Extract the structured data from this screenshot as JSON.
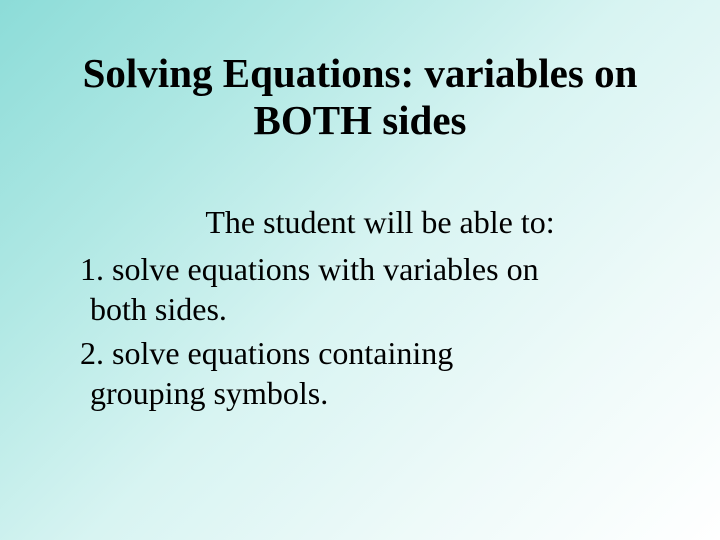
{
  "slide": {
    "title": "Solving Equations: variables on BOTH sides",
    "subtitle": "The student will be able to:",
    "objectives": [
      {
        "number": "1.",
        "text_line1": "solve equations with variables on",
        "text_line2": "both sides."
      },
      {
        "number": "2.",
        "text_line1": "solve equations containing",
        "text_line2": "grouping symbols."
      }
    ]
  },
  "styling": {
    "background_gradient_start": "#8cdcd8",
    "background_gradient_end": "#ffffff",
    "text_color": "#000000",
    "title_fontsize": 41,
    "title_fontweight": "bold",
    "subtitle_fontsize": 32,
    "body_fontsize": 32,
    "font_family": "Times New Roman"
  }
}
